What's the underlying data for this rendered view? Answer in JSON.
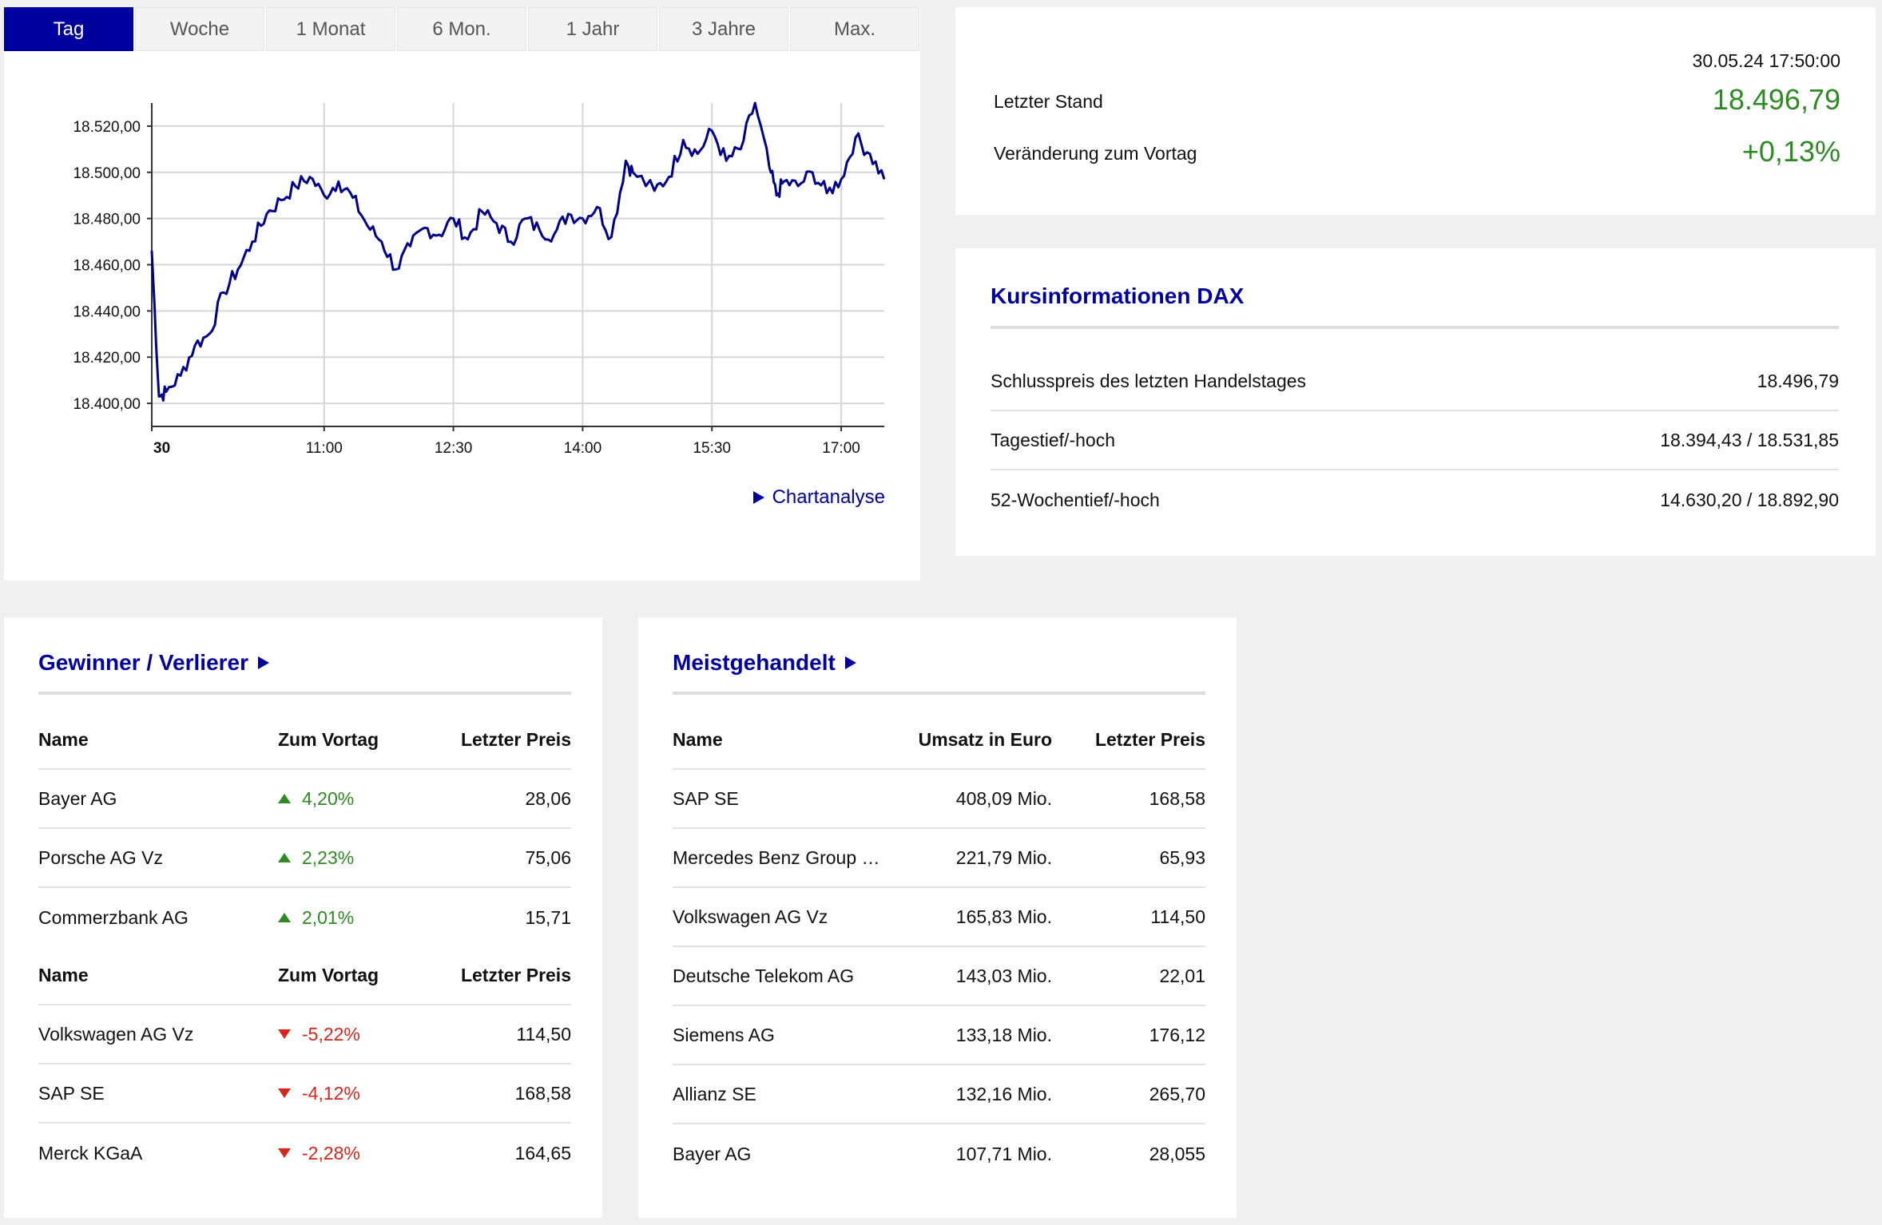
{
  "tabs": [
    "Tag",
    "Woche",
    "1 Monat",
    "6 Mon.",
    "1 Jahr",
    "3 Jahre",
    "Max."
  ],
  "active_tab": "Tag",
  "chart_link": "Chartanalyse",
  "quote": {
    "timestamp": "30.05.24 17:50:00",
    "last_label": "Letzter Stand",
    "last_value": "18.496,79",
    "change_label": "Veränderung zum Vortag",
    "change_value": "+0,13%"
  },
  "kursinfo": {
    "title": "Kursinformationen DAX",
    "rows": [
      {
        "label": "Schlusspreis des letzten Handelstages",
        "value": "18.496,79"
      },
      {
        "label": "Tagestief/-hoch",
        "value": "18.394,43 / 18.531,85"
      },
      {
        "label": "52-Wochentief/-hoch",
        "value": "14.630,20 / 18.892,90"
      }
    ]
  },
  "gewinner_verlierer": {
    "title": "Gewinner / Verlierer",
    "headers": {
      "name": "Name",
      "change": "Zum Vortag",
      "price": "Letzter Preis"
    },
    "gainers": [
      {
        "name": "Bayer AG",
        "change": "4,20%",
        "price": "28,06"
      },
      {
        "name": "Porsche AG Vz",
        "change": "2,23%",
        "price": "75,06"
      },
      {
        "name": "Commerzbank AG",
        "change": "2,01%",
        "price": "15,71"
      }
    ],
    "losers": [
      {
        "name": "Volkswagen AG Vz",
        "change": "-5,22%",
        "price": "114,50"
      },
      {
        "name": "SAP SE",
        "change": "-4,12%",
        "price": "168,58"
      },
      {
        "name": "Merck KGaA",
        "change": "-2,28%",
        "price": "164,65"
      }
    ]
  },
  "meistgehandelt": {
    "title": "Meistgehandelt",
    "headers": {
      "name": "Name",
      "umsatz": "Umsatz in Euro",
      "price": "Letzter Preis"
    },
    "rows": [
      {
        "name": "SAP SE",
        "umsatz": "408,09 Mio.",
        "price": "168,58"
      },
      {
        "name": "Mercedes Benz Group …",
        "umsatz": "221,79 Mio.",
        "price": "65,93"
      },
      {
        "name": "Volkswagen AG Vz",
        "umsatz": "165,83 Mio.",
        "price": "114,50"
      },
      {
        "name": "Deutsche Telekom AG",
        "umsatz": "143,03 Mio.",
        "price": "22,01"
      },
      {
        "name": "Siemens AG",
        "umsatz": "133,18 Mio.",
        "price": "176,12"
      },
      {
        "name": "Allianz SE",
        "umsatz": "132,16 Mio.",
        "price": "265,70"
      },
      {
        "name": "Bayer AG",
        "umsatz": "107,71 Mio.",
        "price": "28,055"
      }
    ]
  },
  "colors": {
    "accent": "#00009f",
    "up": "#2e8b23",
    "down": "#d7261e",
    "line": "#00008b"
  },
  "chart_data": {
    "type": "line",
    "x_ticks": [
      "30",
      "11:00",
      "12:30",
      "14:00",
      "15:30",
      "17:00"
    ],
    "y_ticks": [
      "18.400,00",
      "18.420,00",
      "18.440,00",
      "18.460,00",
      "18.480,00",
      "18.500,00",
      "18.520,00"
    ],
    "ylim": [
      18390,
      18530
    ],
    "grid": true,
    "series": [
      {
        "x": [
          "09:00",
          "09:05",
          "09:10",
          "09:20",
          "09:30",
          "09:40",
          "09:50",
          "10:00",
          "10:10",
          "10:20",
          "10:30",
          "10:40",
          "10:50",
          "11:00",
          "11:10",
          "11:20",
          "11:30",
          "11:40",
          "11:50",
          "12:00",
          "12:10",
          "12:20",
          "12:30",
          "12:40",
          "12:50",
          "13:00",
          "13:10",
          "13:20",
          "13:30",
          "13:40",
          "13:50",
          "14:00",
          "14:10",
          "14:20",
          "14:30",
          "14:35",
          "14:50",
          "15:00",
          "15:10",
          "15:20",
          "15:30",
          "15:40",
          "15:50",
          "16:00",
          "16:10",
          "16:15",
          "16:20",
          "16:30",
          "16:40",
          "16:50",
          "17:00",
          "17:10",
          "17:20",
          "17:30"
        ],
        "y": [
          18466,
          18403,
          18405,
          18412,
          18425,
          18430,
          18448,
          18458,
          18470,
          18482,
          18488,
          18494,
          18498,
          18490,
          18496,
          18489,
          18477,
          18470,
          18458,
          18468,
          18476,
          18473,
          18480,
          18471,
          18483,
          18478,
          18470,
          18480,
          18475,
          18473,
          18482,
          18480,
          18485,
          18472,
          18505,
          18500,
          18492,
          18498,
          18514,
          18508,
          18518,
          18505,
          18510,
          18530,
          18502,
          18490,
          18496,
          18494,
          18500,
          18491,
          18497,
          18515,
          18508,
          18497
        ]
      }
    ]
  }
}
